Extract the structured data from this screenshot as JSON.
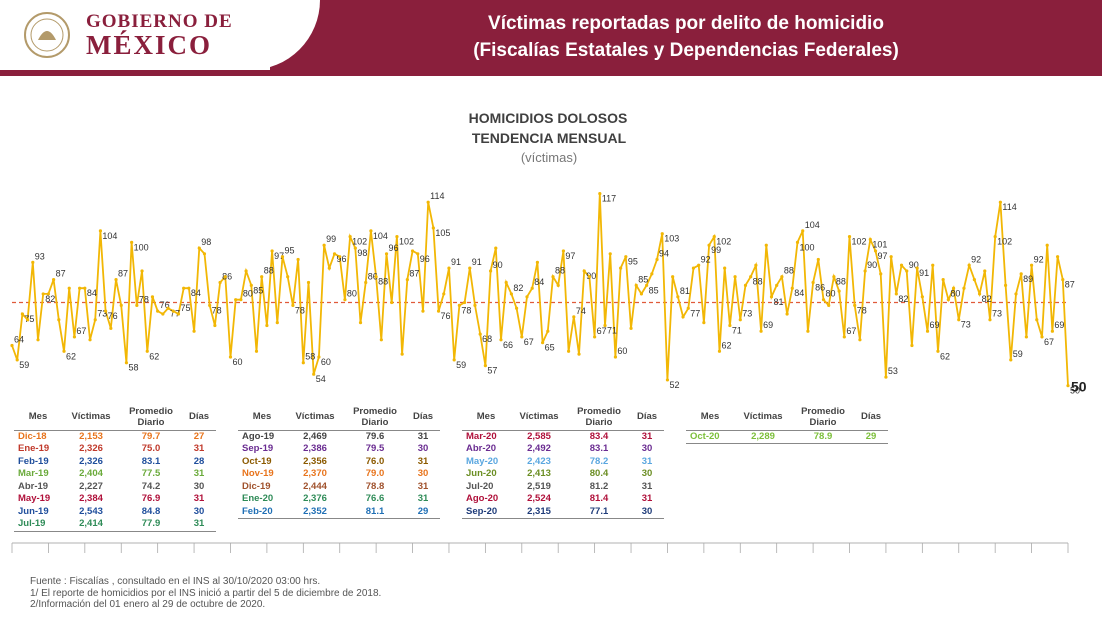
{
  "header": {
    "gov_line1": "GOBIERNO DE",
    "gov_line2": "MÉXICO",
    "title_line1": "Víctimas reportadas por delito de homicidio",
    "title_line2": "(Fiscalías Estatales y Dependencias Federales)",
    "brand_color": "#8a1f3c"
  },
  "chart_data": {
    "type": "line",
    "title": "HOMICIDIOS DOLOSOS",
    "subtitle": "TENDENCIA MENSUAL",
    "unit": "(víctimas)",
    "line_color": "#f2b705",
    "reference_line": {
      "style": "dashed",
      "color": "#e05a3a",
      "value": 79
    },
    "ylim": [
      45,
      120
    ],
    "last_value": 50,
    "values": [
      64,
      59,
      75,
      73,
      93,
      66,
      82,
      82,
      87,
      73,
      62,
      84,
      67,
      84,
      84,
      66,
      73,
      104,
      76,
      70,
      87,
      78,
      58,
      100,
      78,
      90,
      62,
      81,
      76,
      75,
      77,
      76,
      75,
      84,
      84,
      69,
      98,
      96,
      78,
      71,
      86,
      88,
      60,
      80,
      80,
      90,
      85,
      62,
      88,
      71,
      97,
      72,
      95,
      88,
      78,
      94,
      58,
      86,
      54,
      60,
      99,
      91,
      96,
      95,
      80,
      102,
      98,
      72,
      86,
      104,
      88,
      66,
      96,
      79,
      102,
      61,
      87,
      97,
      96,
      76,
      114,
      105,
      76,
      82,
      91,
      59,
      78,
      79,
      91,
      78,
      68,
      57,
      90,
      98,
      66,
      86,
      82,
      77,
      67,
      81,
      84,
      93,
      65,
      69,
      88,
      85,
      97,
      62,
      74,
      61,
      90,
      88,
      67,
      117,
      71,
      96,
      60,
      91,
      95,
      70,
      85,
      82,
      85,
      89,
      94,
      103,
      52,
      88,
      81,
      74,
      77,
      91,
      92,
      72,
      99,
      102,
      62,
      91,
      71,
      88,
      73,
      85,
      88,
      92,
      69,
      99,
      81,
      85,
      88,
      75,
      84,
      100,
      104,
      69,
      86,
      94,
      80,
      78,
      88,
      83,
      67,
      102,
      78,
      66,
      90,
      101,
      97,
      89,
      53,
      95,
      82,
      92,
      90,
      64,
      91,
      81,
      69,
      92,
      62,
      87,
      80,
      84,
      73,
      84,
      92,
      87,
      82,
      90,
      73,
      102,
      114,
      85,
      59,
      82,
      89,
      67,
      92,
      73,
      67,
      99,
      69,
      95,
      87,
      50
    ]
  },
  "tables": [
    {
      "columns": [
        "Mes",
        "Víctimas",
        "Promedio Diario",
        "Días"
      ],
      "rows": [
        {
          "mes": "Dic-18",
          "victimas": "2,153",
          "promedio": "79.7",
          "dias": "27",
          "color": "#e8741c"
        },
        {
          "mes": "Ene-19",
          "victimas": "2,326",
          "promedio": "75.0",
          "dias": "31",
          "color": "#c0392b"
        },
        {
          "mes": "Feb-19",
          "victimas": "2,326",
          "promedio": "83.1",
          "dias": "28",
          "color": "#1f4e9c"
        },
        {
          "mes": "Mar-19",
          "victimas": "2,404",
          "promedio": "77.5",
          "dias": "31",
          "color": "#6aaa3a"
        },
        {
          "mes": "Abr-19",
          "victimas": "2,227",
          "promedio": "74.2",
          "dias": "30",
          "color": "#555555"
        },
        {
          "mes": "May-19",
          "victimas": "2,384",
          "promedio": "76.9",
          "dias": "31",
          "color": "#b0103a"
        },
        {
          "mes": "Jun-19",
          "victimas": "2,543",
          "promedio": "84.8",
          "dias": "30",
          "color": "#1f4e9c"
        },
        {
          "mes": "Jul-19",
          "victimas": "2,414",
          "promedio": "77.9",
          "dias": "31",
          "color": "#2e8b57"
        }
      ]
    },
    {
      "columns": [
        "Mes",
        "Víctimas",
        "Promedio Diario",
        "Días"
      ],
      "rows": [
        {
          "mes": "Ago-19",
          "victimas": "2,469",
          "promedio": "79.6",
          "dias": "31",
          "color": "#444444"
        },
        {
          "mes": "Sep-19",
          "victimas": "2,386",
          "promedio": "79.5",
          "dias": "30",
          "color": "#6a2c91"
        },
        {
          "mes": "Oct-19",
          "victimas": "2,356",
          "promedio": "76.0",
          "dias": "31",
          "color": "#8b5a00"
        },
        {
          "mes": "Nov-19",
          "victimas": "2,370",
          "promedio": "79.0",
          "dias": "30",
          "color": "#e8741c"
        },
        {
          "mes": "Dic-19",
          "victimas": "2,444",
          "promedio": "78.8",
          "dias": "31",
          "color": "#a0522d"
        },
        {
          "mes": "Ene-20",
          "victimas": "2,376",
          "promedio": "76.6",
          "dias": "31",
          "color": "#2e8b57"
        },
        {
          "mes": "Feb-20",
          "victimas": "2,352",
          "promedio": "81.1",
          "dias": "29",
          "color": "#1f6fb5"
        }
      ]
    },
    {
      "columns": [
        "Mes",
        "Víctimas",
        "Promedio Diario",
        "Días"
      ],
      "rows": [
        {
          "mes": "Mar-20",
          "victimas": "2,585",
          "promedio": "83.4",
          "dias": "31",
          "color": "#b0103a"
        },
        {
          "mes": "Abr-20",
          "victimas": "2,492",
          "promedio": "83.1",
          "dias": "30",
          "color": "#6a2c91"
        },
        {
          "mes": "May-20",
          "victimas": "2,423",
          "promedio": "78.2",
          "dias": "31",
          "color": "#5aa7e0"
        },
        {
          "mes": "Jun-20",
          "victimas": "2,413",
          "promedio": "80.4",
          "dias": "30",
          "color": "#6b8e23"
        },
        {
          "mes": "Jul-20",
          "victimas": "2,519",
          "promedio": "81.2",
          "dias": "31",
          "color": "#555555"
        },
        {
          "mes": "Ago-20",
          "victimas": "2,524",
          "promedio": "81.4",
          "dias": "31",
          "color": "#b0103a"
        },
        {
          "mes": "Sep-20",
          "victimas": "2,315",
          "promedio": "77.1",
          "dias": "30",
          "color": "#1f3c7a"
        }
      ]
    },
    {
      "columns": [
        "Mes",
        "Víctimas",
        "Promedio Diario",
        "Días"
      ],
      "rows": [
        {
          "mes": "Oct-20",
          "victimas": "2,289",
          "promedio": "78.9",
          "dias": "29",
          "color": "#7cbf3a"
        }
      ]
    }
  ],
  "footnotes": {
    "source": "Fuente : Fiscalías , consultado en el INS al 30/10/2020 03:00 hrs.",
    "note1": "1/ El reporte de homicidios por el INS inició a partir del 5 de diciembre de 2018.",
    "note2": "2/Información del 01 enero al 29 de octubre de 2020."
  }
}
